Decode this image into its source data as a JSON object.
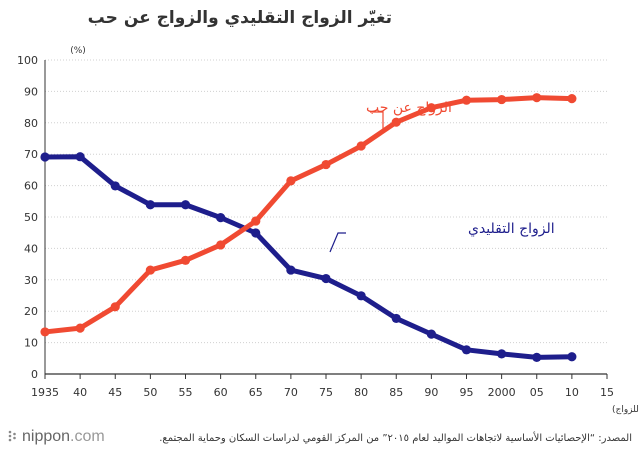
{
  "title": "تغيّر الزواج التقليدي والزواج عن حب",
  "source": "المصدر: “الإحصائيات الأساسية لاتجاهات المواليد لعام ٢٠١٥” من المركز القومي لدراسات السكان وحماية المجتمع.",
  "logo": {
    "brand": "nippon",
    "suffix": ".com"
  },
  "colors": {
    "traditional": "#1e1e8c",
    "love": "#f04a32",
    "grid": "#d0d0d0",
    "axis": "#333333"
  },
  "chart_data": {
    "type": "line",
    "title": "تغيّر الزواج التقليدي والزواج عن حب",
    "unit_label": "(%)",
    "xlabel": "(السنوات التتابعية للزواج)",
    "x_tick_values": [
      1935,
      1940,
      1945,
      1950,
      1955,
      1960,
      1965,
      1970,
      1975,
      1980,
      1985,
      1990,
      1995,
      2000,
      2005,
      2010,
      2015
    ],
    "x_tick_labels": [
      "1935",
      "40",
      "45",
      "50",
      "55",
      "60",
      "65",
      "70",
      "75",
      "80",
      "85",
      "90",
      "95",
      "2000",
      "05",
      "10",
      "15"
    ],
    "xlim": [
      1935,
      2015
    ],
    "ylim": [
      0,
      100
    ],
    "y_ticks": [
      0,
      10,
      20,
      30,
      40,
      50,
      60,
      70,
      80,
      90,
      100
    ],
    "grid": true,
    "x": [
      1935,
      1940,
      1945,
      1950,
      1955,
      1960,
      1965,
      1970,
      1975,
      1980,
      1985,
      1990,
      1995,
      2000,
      2005,
      2010
    ],
    "series": [
      {
        "name": "الزواج التقليدي",
        "color": "#1e1e8c",
        "values": [
          69.1,
          69.2,
          59.9,
          53.9,
          53.9,
          49.8,
          44.9,
          33.1,
          30.4,
          24.9,
          17.7,
          12.7,
          7.7,
          6.4,
          5.3,
          5.5
        ]
      },
      {
        "name": "الزواج عن حب",
        "color": "#f04a32",
        "values": [
          13.4,
          14.6,
          21.4,
          33.1,
          36.2,
          41.1,
          48.7,
          61.5,
          66.7,
          72.6,
          80.2,
          84.8,
          87.2,
          87.4,
          88.0,
          87.7
        ]
      }
    ]
  }
}
